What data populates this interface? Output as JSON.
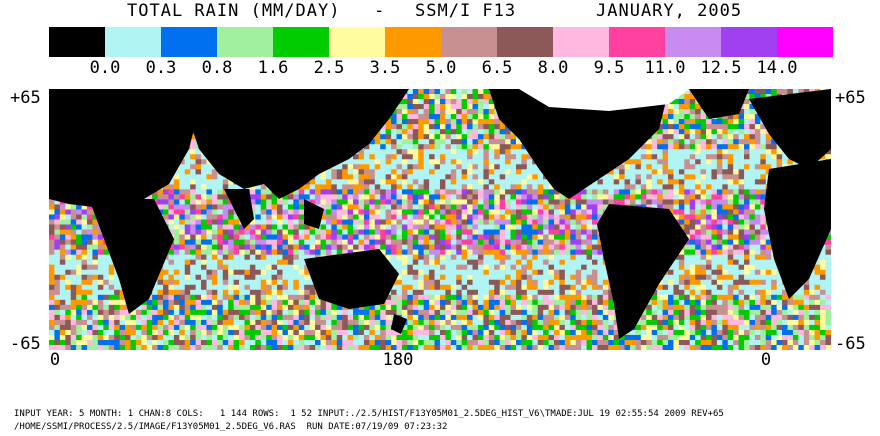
{
  "title": {
    "product": "TOTAL RAIN (MM/DAY)",
    "separator": "-",
    "sensor": "SSM/I F13",
    "date": "JANUARY, 2005"
  },
  "legend": {
    "colors": [
      "#000000",
      "#b0f4f4",
      "#0070f0",
      "#a0f0a0",
      "#00cc00",
      "#fffca0",
      "#ff9900",
      "#c89090",
      "#8c5858",
      "#ffb8e0",
      "#ff40a0",
      "#c88cf0",
      "#a040f0",
      "#ff00ff"
    ],
    "labels": [
      "0.0",
      "0.3",
      "0.8",
      "1.6",
      "2.5",
      "3.5",
      "5.0",
      "6.5",
      "8.0",
      "9.5",
      "11.0",
      "12.5",
      "14.0"
    ]
  },
  "axes": {
    "lat_top": "+65",
    "lat_bottom": "-65",
    "lon_left": "0",
    "lon_mid": "180",
    "lon_right": "0"
  },
  "footer": {
    "line1": "INPUT YEAR: 5 MONTH: 1 CHAN:8 COLS:   1 144 ROWS:  1 52 INPUT:./2.5/HIST/F13Y05M01_2.5DEG_HIST_V6\\TMADE:JUL 19 02:55:54 2009 REV+65",
    "line2": "/HOME/SSMI/PROCESS/2.5/IMAGE/F13Y05M01_2.5DEG_V6.RAS  RUN DATE:07/19/09 07:23:32"
  }
}
